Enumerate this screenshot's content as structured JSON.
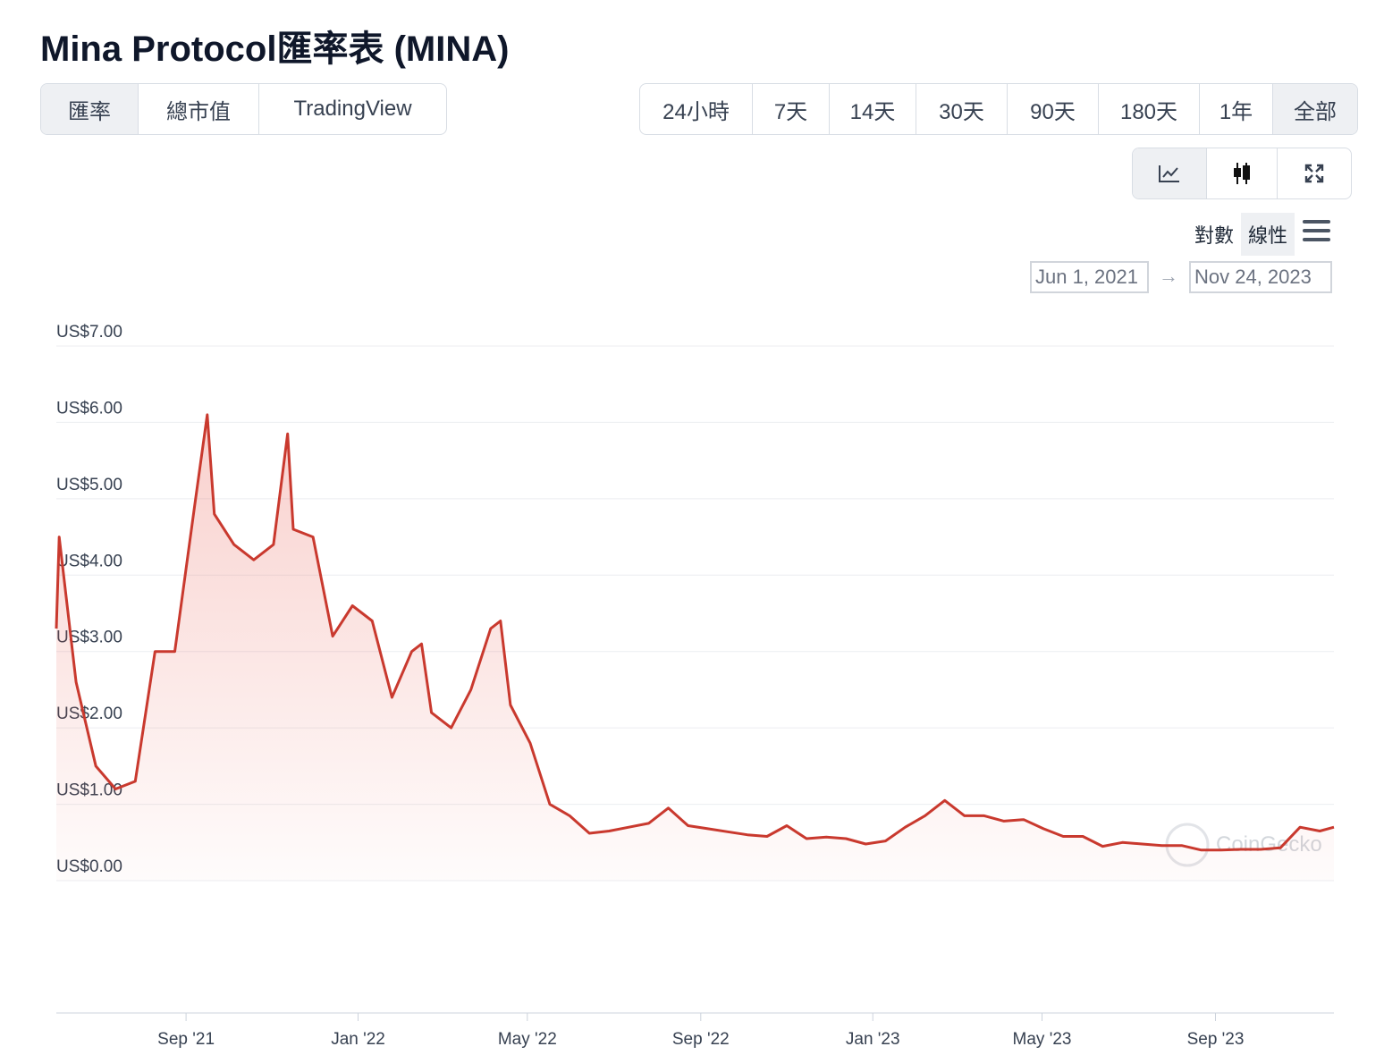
{
  "header": {
    "title": "Mina Protocol匯率表 (MINA)"
  },
  "tabs": {
    "items": [
      "匯率",
      "總市值",
      "TradingView"
    ],
    "selected": 0
  },
  "ranges": {
    "items": [
      "24小時",
      "7天",
      "14天",
      "30天",
      "90天",
      "180天",
      "1年",
      "全部"
    ],
    "selected": 7
  },
  "scale_options": {
    "items": [
      "對數",
      "線性"
    ],
    "selected": 1
  },
  "date_range": {
    "from": "Jun 1, 2021",
    "arrow": "→",
    "to": "Nov 24, 2023"
  },
  "chart_data": {
    "type": "line",
    "watermark": "CoinGecko",
    "xlim": [
      "2021-06-01",
      "2023-11-24"
    ],
    "xticks": [
      {
        "value": "2021-09-01",
        "label": "Sep '21"
      },
      {
        "value": "2022-01-01",
        "label": "Jan '22"
      },
      {
        "value": "2022-05-01",
        "label": "May '22"
      },
      {
        "value": "2022-09-01",
        "label": "Sep '22"
      },
      {
        "value": "2023-01-01",
        "label": "Jan '23"
      },
      {
        "value": "2023-05-01",
        "label": "May '23"
      },
      {
        "value": "2023-09-01",
        "label": "Sep '23"
      }
    ],
    "ylim": [
      0,
      7
    ],
    "yticks": [
      {
        "value": 0,
        "label": "US$0.00"
      },
      {
        "value": 1,
        "label": "US$1.00"
      },
      {
        "value": 2,
        "label": "US$2.00"
      },
      {
        "value": 3,
        "label": "US$3.00"
      },
      {
        "value": 4,
        "label": "US$4.00"
      },
      {
        "value": 5,
        "label": "US$5.00"
      },
      {
        "value": 6,
        "label": "US$6.00"
      },
      {
        "value": 7,
        "label": "US$7.00"
      }
    ],
    "grid": true,
    "x": [
      "2021-06-01",
      "2021-06-03",
      "2021-06-15",
      "2021-06-29",
      "2021-07-13",
      "2021-07-27",
      "2021-08-10",
      "2021-08-24",
      "2021-09-07",
      "2021-09-16",
      "2021-09-21",
      "2021-10-05",
      "2021-10-19",
      "2021-11-02",
      "2021-11-12",
      "2021-11-16",
      "2021-11-30",
      "2021-12-14",
      "2021-12-28",
      "2022-01-11",
      "2022-01-25",
      "2022-02-08",
      "2022-02-15",
      "2022-02-22",
      "2022-03-08",
      "2022-03-22",
      "2022-04-05",
      "2022-04-12",
      "2022-04-19",
      "2022-05-03",
      "2022-05-17",
      "2022-05-31",
      "2022-06-14",
      "2022-06-28",
      "2022-07-12",
      "2022-07-26",
      "2022-08-09",
      "2022-08-23",
      "2022-09-06",
      "2022-09-20",
      "2022-10-04",
      "2022-10-18",
      "2022-11-01",
      "2022-11-15",
      "2022-11-29",
      "2022-12-13",
      "2022-12-27",
      "2023-01-10",
      "2023-01-24",
      "2023-02-07",
      "2023-02-21",
      "2023-03-07",
      "2023-03-21",
      "2023-04-04",
      "2023-04-18",
      "2023-05-02",
      "2023-05-16",
      "2023-05-30",
      "2023-06-13",
      "2023-06-27",
      "2023-07-11",
      "2023-07-25",
      "2023-08-08",
      "2023-08-22",
      "2023-09-05",
      "2023-09-19",
      "2023-10-03",
      "2023-10-17",
      "2023-10-31",
      "2023-11-14",
      "2023-11-24"
    ],
    "series": [
      {
        "name": "MINA",
        "color": "#c9392e",
        "values": [
          3.3,
          4.5,
          2.6,
          1.5,
          1.2,
          1.3,
          3.0,
          3.0,
          4.9,
          6.1,
          4.8,
          4.4,
          4.2,
          4.4,
          5.85,
          4.6,
          4.5,
          3.2,
          3.6,
          3.4,
          2.4,
          3.0,
          3.1,
          2.2,
          2.0,
          2.5,
          3.3,
          3.4,
          2.3,
          1.8,
          1.0,
          0.85,
          0.62,
          0.65,
          0.7,
          0.75,
          0.95,
          0.72,
          0.68,
          0.64,
          0.6,
          0.58,
          0.72,
          0.55,
          0.57,
          0.55,
          0.48,
          0.52,
          0.7,
          0.85,
          1.05,
          0.85,
          0.85,
          0.78,
          0.8,
          0.68,
          0.58,
          0.58,
          0.45,
          0.5,
          0.48,
          0.46,
          0.46,
          0.4,
          0.4,
          0.41,
          0.41,
          0.43,
          0.7,
          0.65,
          0.7
        ]
      }
    ]
  }
}
